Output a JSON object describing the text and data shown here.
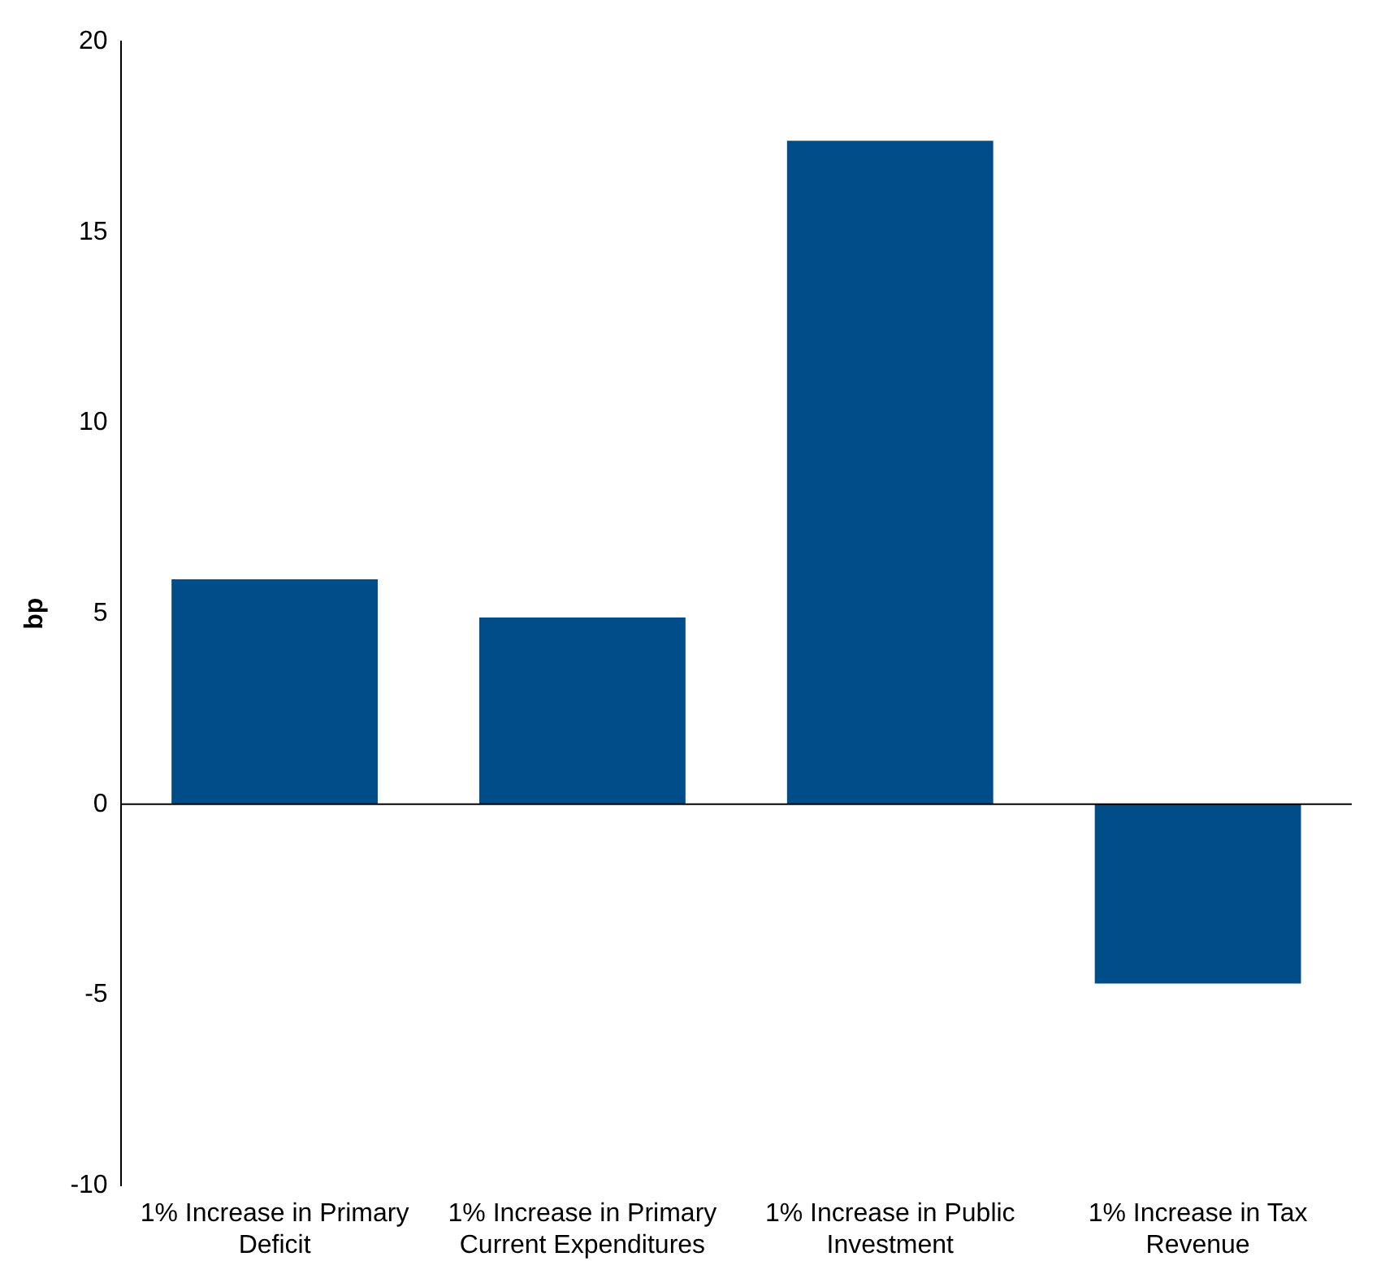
{
  "chart_data": {
    "type": "bar",
    "ylabel": "bp",
    "categories": [
      "1% Increase in Primary Deficit",
      "1% Increase in Primary Current Expenditures",
      "1% Increase in Public Investment",
      "1% Increase in Tax Revenue"
    ],
    "values": [
      5.9,
      4.9,
      17.4,
      -4.7
    ],
    "color": "#004d8a",
    "ylim": [
      -10,
      20
    ],
    "yticks": [
      -10,
      -5,
      0,
      5,
      10,
      15,
      20
    ],
    "grid": false,
    "legend": false,
    "ref_lines": [
      {
        "axis": "y",
        "value": 0,
        "color": "#000000"
      }
    ]
  }
}
